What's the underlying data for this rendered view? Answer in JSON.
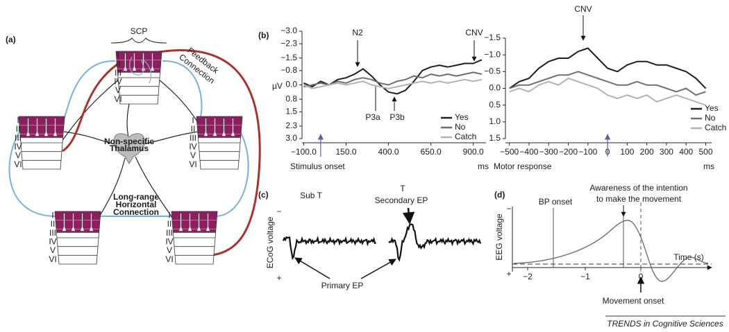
{
  "panel_a": {
    "label": "(a)",
    "scp": "SCP",
    "layers": [
      "I",
      "II",
      "III",
      "IV",
      "V",
      "VI"
    ],
    "feedback": [
      "Feedback",
      "Connection"
    ],
    "thalamus": [
      "Non-specific",
      "Thalamus"
    ],
    "horizontal": [
      "Long-range",
      "Horizontal",
      "Connection"
    ]
  },
  "chart_data": [
    {
      "type": "line",
      "panel_label": "(b)",
      "y_label": "µV",
      "x_label": "Stimulus onset",
      "x_unit": "ms",
      "xlim": [
        -110,
        975
      ],
      "ylim": [
        3,
        -3
      ],
      "xticks": [
        {
          "value": -100,
          "label": "−100.0"
        },
        {
          "value": 150,
          "label": "150.0"
        },
        {
          "value": 400,
          "label": "400.0"
        },
        {
          "value": 650,
          "label": "650.0"
        },
        {
          "value": 900,
          "label": "900.0"
        }
      ],
      "yticks": [
        {
          "value": -3,
          "label": "−3.0"
        },
        {
          "value": -2.3,
          "label": "−2.3"
        },
        {
          "value": -1.5,
          "label": "−1.5"
        },
        {
          "value": -0.8,
          "label": "−0.8"
        },
        {
          "value": 0,
          "label": "0.0"
        },
        0.8,
        1.5,
        2.3,
        {
          "value": 3,
          "label": "3.0"
        }
      ],
      "x": [
        -100,
        -50,
        0,
        50,
        100,
        150,
        200,
        250,
        300,
        350,
        400,
        450,
        500,
        550,
        600,
        650,
        700,
        750,
        800,
        850,
        900,
        950
      ],
      "series": [
        {
          "name": "Yes",
          "color": "#1e1e1e",
          "values": [
            -0.1,
            0.1,
            -0.2,
            0,
            -0.3,
            -0.4,
            -0.6,
            -0.9,
            -0.5,
            0,
            0.4,
            0.5,
            0.3,
            -0.2,
            -0.8,
            -1.0,
            -1.1,
            -1.0,
            -1.1,
            -1.2,
            -1.2,
            -1.4
          ]
        },
        {
          "name": "No",
          "color": "#6e6e6e",
          "values": [
            0.1,
            0,
            -0.1,
            0,
            -0.2,
            -0.1,
            -0.3,
            -0.4,
            -0.3,
            -0.1,
            0,
            -0.2,
            -0.3,
            -0.5,
            -0.4,
            -0.6,
            -0.5,
            -0.6,
            -0.5,
            -0.6,
            -0.7,
            -0.6
          ]
        },
        {
          "name": "Catch",
          "color": "#b2b2b2",
          "values": [
            0,
            0.2,
            0.1,
            0,
            -0.1,
            0,
            -0.1,
            -0.2,
            0,
            0.1,
            0.2,
            0.1,
            0,
            -0.1,
            -0.2,
            -0.1,
            -0.2,
            -0.1,
            -0.2,
            -0.3,
            -0.2,
            -0.3
          ]
        }
      ],
      "annotations": [
        "N2",
        "P3a",
        "P3b",
        "CNV"
      ]
    },
    {
      "type": "line",
      "x_label": "Motor response",
      "x_unit": "ms",
      "xlim": [
        -520,
        530
      ],
      "ylim": [
        1.5,
        -1.5
      ],
      "xticks": [
        {
          "value": -500,
          "label": "−500"
        },
        {
          "value": -400,
          "label": "−400"
        },
        {
          "value": -300,
          "label": "−300"
        },
        {
          "value": -200,
          "label": "−200"
        },
        {
          "value": -100,
          "label": "−100"
        },
        0,
        100,
        200,
        300,
        400,
        500
      ],
      "yticks": [
        {
          "value": -1.5,
          "label": "−1.5"
        },
        {
          "value": -1,
          "label": "−1.0"
        },
        {
          "value": -0.5,
          "label": "−0.5"
        },
        {
          "value": 0,
          "label": "0.0"
        },
        0.5,
        {
          "value": 1,
          "label": "1.0"
        },
        1.5
      ],
      "x": [
        -500,
        -450,
        -400,
        -350,
        -300,
        -250,
        -200,
        -150,
        -100,
        -50,
        0,
        50,
        100,
        150,
        200,
        250,
        300,
        350,
        400,
        450,
        500
      ],
      "series": [
        {
          "name": "Yes",
          "color": "#1e1e1e",
          "values": [
            0,
            -0.2,
            -0.3,
            -0.6,
            -0.8,
            -0.9,
            -0.9,
            -1.1,
            -1.2,
            -0.9,
            -0.6,
            -0.5,
            -0.7,
            -0.8,
            -0.8,
            -0.7,
            -0.7,
            -0.6,
            -0.5,
            -0.3,
            0
          ]
        },
        {
          "name": "No",
          "color": "#6e6e6e",
          "values": [
            0,
            -0.1,
            -0.1,
            -0.2,
            -0.3,
            -0.4,
            -0.4,
            -0.5,
            -0.4,
            -0.3,
            -0.2,
            -0.1,
            -0.1,
            -0.2,
            -0.1,
            -0.1,
            0,
            0.1,
            0,
            0.2,
            0.1
          ]
        },
        {
          "name": "Catch",
          "color": "#b2b2b2",
          "values": [
            0.1,
            0,
            0.1,
            -0.1,
            -0.2,
            -0.1,
            -0.3,
            -0.2,
            -0.1,
            0,
            0.2,
            0.3,
            0.2,
            0.3,
            0.2,
            0.4,
            0.3,
            0.2,
            0.3,
            0.4,
            0.5
          ]
        }
      ],
      "annotations": [
        "CNV"
      ]
    }
  ],
  "panel_c": {
    "label": "(c)",
    "y_label": "ECoG voltage",
    "minus": "−",
    "plus": "+",
    "sub_t": "Sub T",
    "t": "T",
    "secondary": "Secondary EP",
    "primary": "Primary EP"
  },
  "panel_d": {
    "label": "(d)",
    "y_label": "EEG voltage",
    "minus": "−",
    "plus": "+",
    "x_label": "Time (s)",
    "x_ticks": [
      "−2",
      "−1",
      "0"
    ],
    "bp_onset": "BP onset",
    "awareness": [
      "Awareness of the intention",
      "to make the movement"
    ],
    "movement_onset": "Movement onset"
  },
  "source": "TRENDS in Cognitive Sciences"
}
